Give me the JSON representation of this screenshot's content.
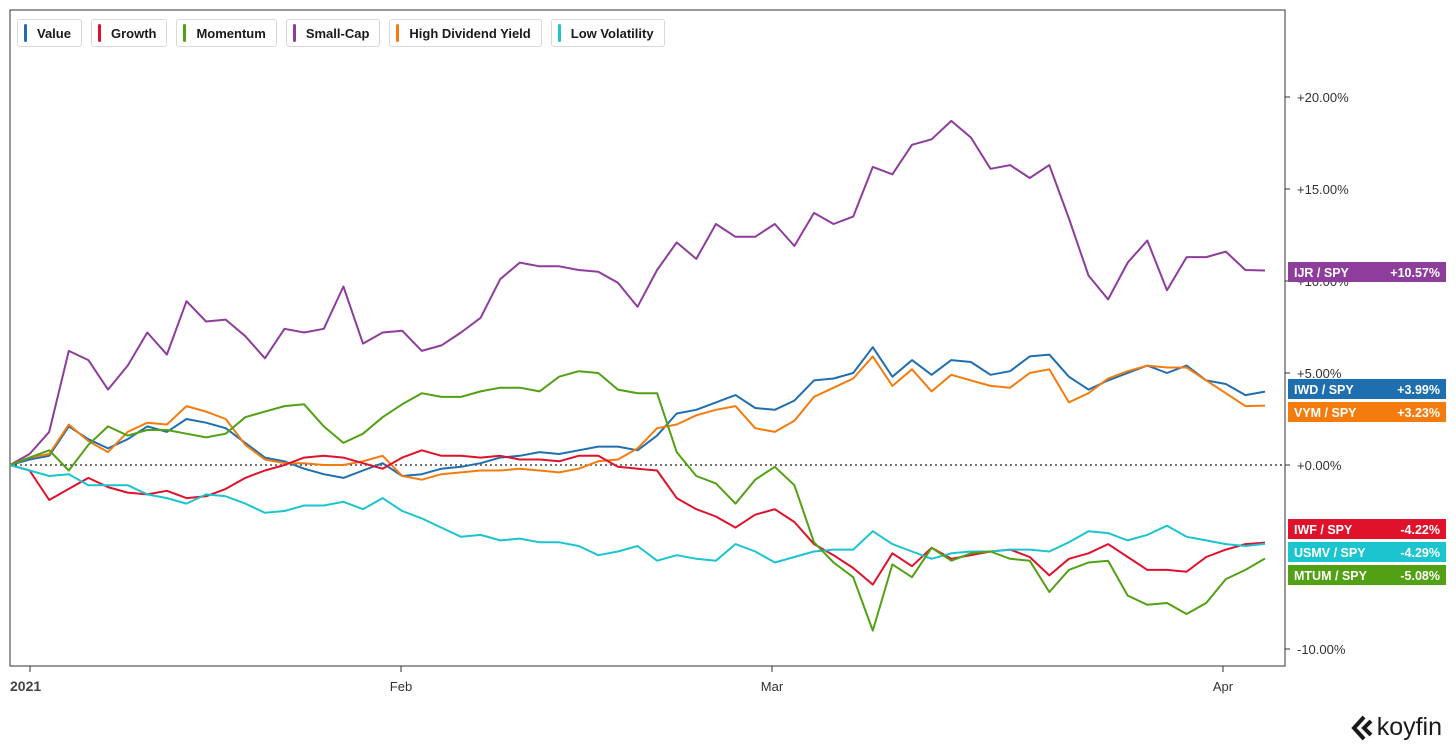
{
  "legend": {
    "items": [
      {
        "label": "Value",
        "color": "#1f6fb0"
      },
      {
        "label": "Growth",
        "color": "#e0112b"
      },
      {
        "label": "Momentum",
        "color": "#52a014"
      },
      {
        "label": "Small-Cap",
        "color": "#8e3d9c"
      },
      {
        "label": "High Dividend Yield",
        "color": "#f47c0f"
      },
      {
        "label": "Low Volatility",
        "color": "#1cc4cf"
      }
    ]
  },
  "brand": {
    "name": "koyfin"
  },
  "chart_data": {
    "type": "line",
    "title": "",
    "xlabel": "",
    "ylabel": "",
    "x_ticks": [
      "2021",
      "Feb",
      "Mar",
      "Apr"
    ],
    "y_ticks": [
      "+20.00%",
      "+15.00%",
      "+10.00%",
      "+5.00%",
      "+0.00%",
      "-10.00%"
    ],
    "ylim": [
      -11,
      24.5
    ],
    "grid": false,
    "legend_position": "top-left",
    "zero_line": "dotted",
    "series": [
      {
        "name": "Small-Cap",
        "tag": "IJR / SPY",
        "end_label": "+10.57%",
        "color": "#8e3d9c",
        "values": [
          0.0,
          0.6,
          1.8,
          6.2,
          5.7,
          4.1,
          5.4,
          7.2,
          6.0,
          8.9,
          7.8,
          7.9,
          7.0,
          5.8,
          7.4,
          7.2,
          7.4,
          9.7,
          6.6,
          7.2,
          7.3,
          6.2,
          6.5,
          7.2,
          8.0,
          10.1,
          11.0,
          10.8,
          10.8,
          10.6,
          10.5,
          9.9,
          8.6,
          10.6,
          12.1,
          11.2,
          13.1,
          12.4,
          12.4,
          13.1,
          11.9,
          13.7,
          13.1,
          13.5,
          16.2,
          15.8,
          17.4,
          17.7,
          18.7,
          17.8,
          16.1,
          16.3,
          15.6,
          16.3,
          13.4,
          10.3,
          9.0,
          11.0,
          12.2,
          9.5,
          11.3,
          11.3,
          11.6,
          10.6,
          10.57
        ]
      },
      {
        "name": "Value",
        "tag": "IWD / SPY",
        "end_label": "+3.99%",
        "color": "#1f6fb0",
        "values": [
          0.0,
          0.3,
          0.5,
          2.1,
          1.4,
          0.9,
          1.4,
          2.1,
          1.8,
          2.5,
          2.3,
          2.0,
          1.2,
          0.4,
          0.2,
          -0.2,
          -0.5,
          -0.7,
          -0.3,
          0.1,
          -0.6,
          -0.5,
          -0.2,
          -0.1,
          0.1,
          0.4,
          0.5,
          0.7,
          0.6,
          0.8,
          1.0,
          1.0,
          0.8,
          1.6,
          2.8,
          3.0,
          3.4,
          3.8,
          3.1,
          3.0,
          3.5,
          4.6,
          4.7,
          5.0,
          6.4,
          4.8,
          5.7,
          4.9,
          5.7,
          5.6,
          4.9,
          5.1,
          5.9,
          6.0,
          4.8,
          4.1,
          4.6,
          5.0,
          5.4,
          5.0,
          5.4,
          4.6,
          4.4,
          3.8,
          3.99
        ]
      },
      {
        "name": "High Dividend Yield",
        "tag": "VYM / SPY",
        "end_label": "+3.23%",
        "color": "#f47c0f",
        "values": [
          0.0,
          0.4,
          0.6,
          2.2,
          1.3,
          0.7,
          1.8,
          2.3,
          2.2,
          3.2,
          2.9,
          2.5,
          1.1,
          0.3,
          0.1,
          0.1,
          0.0,
          0.0,
          0.2,
          0.5,
          -0.6,
          -0.8,
          -0.5,
          -0.4,
          -0.3,
          -0.3,
          -0.2,
          -0.3,
          -0.4,
          -0.2,
          0.2,
          0.3,
          0.9,
          2.0,
          2.2,
          2.7,
          3.0,
          3.2,
          2.0,
          1.8,
          2.4,
          3.7,
          4.2,
          4.7,
          5.9,
          4.3,
          5.2,
          4.0,
          4.9,
          4.6,
          4.3,
          4.2,
          5.0,
          5.2,
          3.4,
          3.9,
          4.7,
          5.1,
          5.4,
          5.3,
          5.3,
          4.6,
          3.9,
          3.2,
          3.23
        ]
      },
      {
        "name": "Growth",
        "tag": "IWF / SPY",
        "end_label": "-4.22%",
        "color": "#e0112b",
        "values": [
          0.0,
          -0.3,
          -1.9,
          -1.3,
          -0.7,
          -1.2,
          -1.5,
          -1.6,
          -1.4,
          -1.8,
          -1.7,
          -1.3,
          -0.7,
          -0.3,
          0.0,
          0.4,
          0.5,
          0.4,
          0.1,
          -0.2,
          0.4,
          0.8,
          0.5,
          0.5,
          0.4,
          0.5,
          0.3,
          0.3,
          0.2,
          0.5,
          0.5,
          -0.1,
          -0.2,
          -0.3,
          -1.8,
          -2.4,
          -2.8,
          -3.4,
          -2.7,
          -2.4,
          -3.1,
          -4.3,
          -4.9,
          -5.6,
          -6.5,
          -4.8,
          -5.5,
          -4.5,
          -5.1,
          -4.9,
          -4.7,
          -4.6,
          -5.0,
          -6.0,
          -5.1,
          -4.8,
          -4.3,
          -5.0,
          -5.7,
          -5.7,
          -5.8,
          -5.0,
          -4.6,
          -4.3,
          -4.22
        ]
      },
      {
        "name": "Low Volatility",
        "tag": "USMV / SPY",
        "end_label": "-4.29%",
        "color": "#1cc4cf",
        "values": [
          0.0,
          -0.3,
          -0.6,
          -0.5,
          -1.1,
          -1.1,
          -1.1,
          -1.6,
          -1.8,
          -2.1,
          -1.6,
          -1.7,
          -2.1,
          -2.6,
          -2.5,
          -2.2,
          -2.2,
          -2.0,
          -2.4,
          -1.8,
          -2.5,
          -2.9,
          -3.4,
          -3.9,
          -3.8,
          -4.1,
          -4.0,
          -4.2,
          -4.2,
          -4.4,
          -4.9,
          -4.7,
          -4.4,
          -5.2,
          -4.9,
          -5.1,
          -5.2,
          -4.3,
          -4.7,
          -5.3,
          -5.0,
          -4.7,
          -4.6,
          -4.6,
          -3.6,
          -4.3,
          -4.7,
          -5.1,
          -4.8,
          -4.7,
          -4.7,
          -4.6,
          -4.6,
          -4.7,
          -4.2,
          -3.6,
          -3.7,
          -4.1,
          -3.8,
          -3.3,
          -3.9,
          -4.1,
          -4.3,
          -4.4,
          -4.29
        ]
      },
      {
        "name": "Momentum",
        "tag": "MTUM / SPY",
        "end_label": "-5.08%",
        "color": "#52a014",
        "values": [
          0.0,
          0.4,
          0.8,
          -0.3,
          1.1,
          2.1,
          1.6,
          1.9,
          1.9,
          1.7,
          1.5,
          1.7,
          2.6,
          2.9,
          3.2,
          3.3,
          2.1,
          1.2,
          1.7,
          2.6,
          3.3,
          3.9,
          3.7,
          3.7,
          4.0,
          4.2,
          4.2,
          4.0,
          4.8,
          5.1,
          5.0,
          4.1,
          3.9,
          3.9,
          0.7,
          -0.6,
          -1.0,
          -2.1,
          -0.8,
          -0.1,
          -1.1,
          -4.2,
          -5.3,
          -6.1,
          -9.0,
          -5.4,
          -6.1,
          -4.5,
          -5.2,
          -4.8,
          -4.7,
          -5.1,
          -5.2,
          -6.9,
          -5.7,
          -5.3,
          -5.2,
          -7.1,
          -7.6,
          -7.5,
          -8.1,
          -7.5,
          -6.2,
          -5.7,
          -5.08
        ]
      }
    ]
  }
}
